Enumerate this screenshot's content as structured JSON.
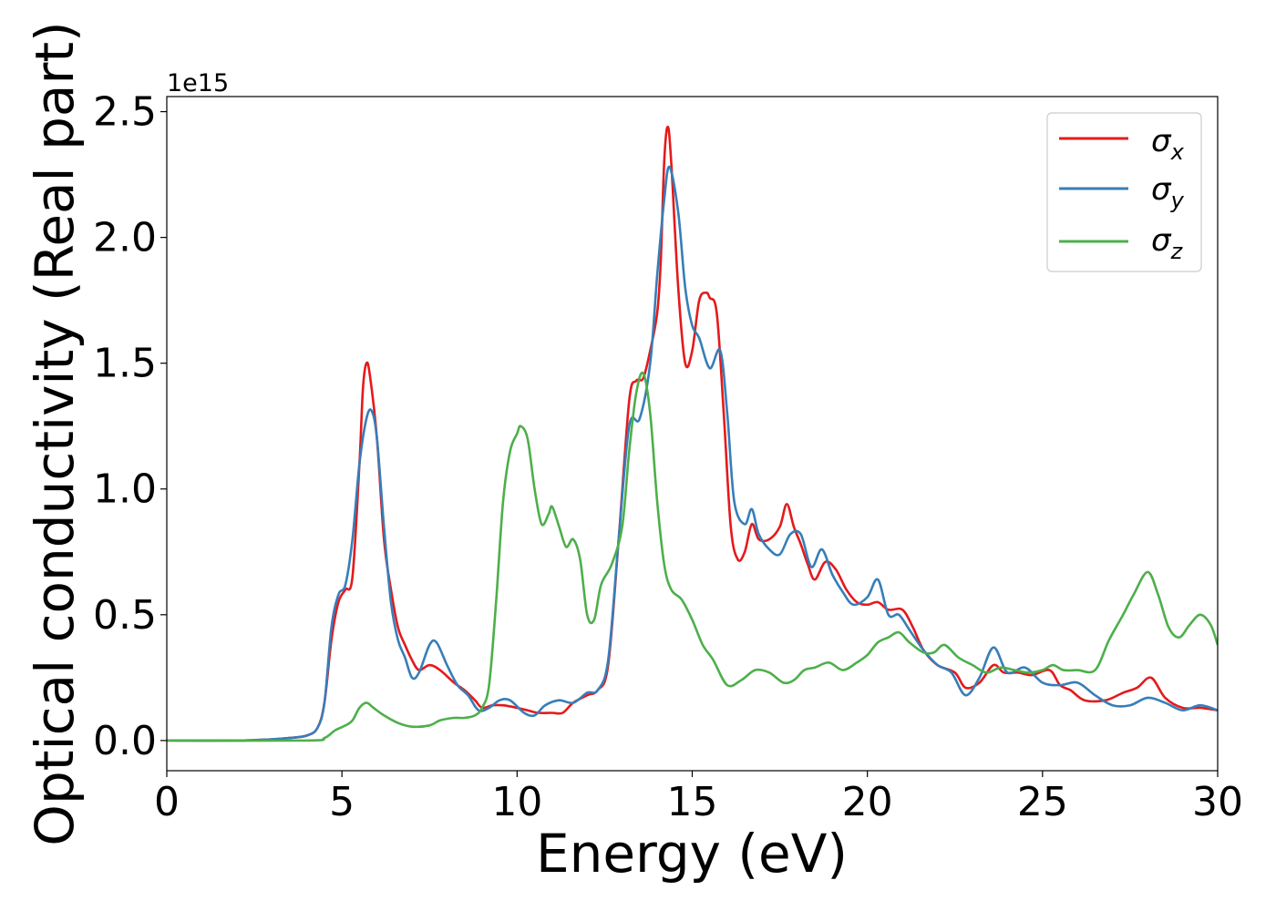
{
  "chart_data": {
    "type": "line",
    "xlabel": "Energy (eV)",
    "ylabel": "Optical conductivity (Real part)",
    "y_offset_label": "1e15",
    "xlim": [
      0,
      30
    ],
    "ylim": [
      -0.12,
      2.56
    ],
    "x_ticks": [
      0,
      5,
      10,
      15,
      20,
      25,
      30
    ],
    "x_tick_labels": [
      "0",
      "5",
      "10",
      "15",
      "20",
      "25",
      "30"
    ],
    "y_ticks": [
      0.0,
      0.5,
      1.0,
      1.5,
      2.0,
      2.5
    ],
    "y_tick_labels": [
      "0.0",
      "0.5",
      "1.0",
      "1.5",
      "2.0",
      "2.5"
    ],
    "grid": false,
    "legend_position": "top-right",
    "series": [
      {
        "name": "σx",
        "legend_base": "σ",
        "legend_sub": "x",
        "color": "#e41a1c",
        "points": [
          [
            0,
            0
          ],
          [
            2,
            0
          ],
          [
            3,
            0.005
          ],
          [
            3.5,
            0.01
          ],
          [
            4,
            0.02
          ],
          [
            4.3,
            0.05
          ],
          [
            4.5,
            0.15
          ],
          [
            4.7,
            0.4
          ],
          [
            4.9,
            0.55
          ],
          [
            5.1,
            0.6
          ],
          [
            5.3,
            0.65
          ],
          [
            5.5,
            1.1
          ],
          [
            5.6,
            1.4
          ],
          [
            5.7,
            1.5
          ],
          [
            5.8,
            1.45
          ],
          [
            6,
            1.2
          ],
          [
            6.2,
            0.8
          ],
          [
            6.4,
            0.6
          ],
          [
            6.6,
            0.45
          ],
          [
            6.8,
            0.38
          ],
          [
            7,
            0.32
          ],
          [
            7.2,
            0.28
          ],
          [
            7.5,
            0.3
          ],
          [
            7.8,
            0.28
          ],
          [
            8.2,
            0.23
          ],
          [
            8.5,
            0.2
          ],
          [
            8.8,
            0.16
          ],
          [
            9,
            0.13
          ],
          [
            9.3,
            0.14
          ],
          [
            9.6,
            0.14
          ],
          [
            10,
            0.13
          ],
          [
            10.3,
            0.12
          ],
          [
            10.6,
            0.11
          ],
          [
            11,
            0.11
          ],
          [
            11.3,
            0.11
          ],
          [
            11.6,
            0.15
          ],
          [
            12,
            0.18
          ],
          [
            12.3,
            0.2
          ],
          [
            12.6,
            0.3
          ],
          [
            12.9,
            0.8
          ],
          [
            13.2,
            1.35
          ],
          [
            13.4,
            1.43
          ],
          [
            13.6,
            1.44
          ],
          [
            13.8,
            1.55
          ],
          [
            14,
            1.7
          ],
          [
            14.1,
            1.9
          ],
          [
            14.2,
            2.3
          ],
          [
            14.3,
            2.44
          ],
          [
            14.4,
            2.3
          ],
          [
            14.6,
            1.8
          ],
          [
            14.8,
            1.5
          ],
          [
            15,
            1.55
          ],
          [
            15.2,
            1.75
          ],
          [
            15.4,
            1.78
          ],
          [
            15.5,
            1.76
          ],
          [
            15.7,
            1.7
          ],
          [
            15.9,
            1.3
          ],
          [
            16.1,
            0.85
          ],
          [
            16.3,
            0.72
          ],
          [
            16.5,
            0.75
          ],
          [
            16.7,
            0.86
          ],
          [
            16.9,
            0.8
          ],
          [
            17.2,
            0.8
          ],
          [
            17.5,
            0.85
          ],
          [
            17.7,
            0.94
          ],
          [
            17.9,
            0.85
          ],
          [
            18.1,
            0.78
          ],
          [
            18.3,
            0.7
          ],
          [
            18.5,
            0.64
          ],
          [
            18.8,
            0.71
          ],
          [
            19.1,
            0.68
          ],
          [
            19.4,
            0.6
          ],
          [
            19.7,
            0.55
          ],
          [
            20,
            0.54
          ],
          [
            20.3,
            0.55
          ],
          [
            20.6,
            0.52
          ],
          [
            21,
            0.52
          ],
          [
            21.3,
            0.45
          ],
          [
            21.6,
            0.36
          ],
          [
            22,
            0.3
          ],
          [
            22.5,
            0.27
          ],
          [
            22.8,
            0.21
          ],
          [
            23.2,
            0.23
          ],
          [
            23.6,
            0.3
          ],
          [
            23.9,
            0.27
          ],
          [
            24.3,
            0.27
          ],
          [
            24.7,
            0.26
          ],
          [
            25.2,
            0.28
          ],
          [
            25.5,
            0.22
          ],
          [
            25.8,
            0.2
          ],
          [
            26.2,
            0.16
          ],
          [
            26.8,
            0.16
          ],
          [
            27.3,
            0.19
          ],
          [
            27.7,
            0.21
          ],
          [
            28.1,
            0.25
          ],
          [
            28.5,
            0.17
          ],
          [
            29,
            0.13
          ],
          [
            29.5,
            0.13
          ],
          [
            30,
            0.12
          ]
        ]
      },
      {
        "name": "σy",
        "legend_base": "σ",
        "legend_sub": "y",
        "color": "#377eb8",
        "points": [
          [
            0,
            0
          ],
          [
            2,
            0
          ],
          [
            3,
            0.005
          ],
          [
            3.5,
            0.01
          ],
          [
            4,
            0.02
          ],
          [
            4.3,
            0.05
          ],
          [
            4.5,
            0.15
          ],
          [
            4.7,
            0.45
          ],
          [
            4.9,
            0.58
          ],
          [
            5.1,
            0.62
          ],
          [
            5.3,
            0.8
          ],
          [
            5.5,
            1.1
          ],
          [
            5.7,
            1.28
          ],
          [
            5.85,
            1.31
          ],
          [
            6,
            1.2
          ],
          [
            6.2,
            0.85
          ],
          [
            6.4,
            0.55
          ],
          [
            6.6,
            0.4
          ],
          [
            6.8,
            0.33
          ],
          [
            7,
            0.25
          ],
          [
            7.2,
            0.27
          ],
          [
            7.5,
            0.38
          ],
          [
            7.7,
            0.39
          ],
          [
            8,
            0.3
          ],
          [
            8.3,
            0.22
          ],
          [
            8.6,
            0.18
          ],
          [
            8.9,
            0.12
          ],
          [
            9.2,
            0.13
          ],
          [
            9.5,
            0.16
          ],
          [
            9.8,
            0.16
          ],
          [
            10.2,
            0.11
          ],
          [
            10.5,
            0.1
          ],
          [
            10.8,
            0.14
          ],
          [
            11.2,
            0.16
          ],
          [
            11.6,
            0.15
          ],
          [
            12,
            0.19
          ],
          [
            12.3,
            0.2
          ],
          [
            12.6,
            0.32
          ],
          [
            12.9,
            0.8
          ],
          [
            13.2,
            1.25
          ],
          [
            13.5,
            1.28
          ],
          [
            13.8,
            1.5
          ],
          [
            14,
            1.85
          ],
          [
            14.2,
            2.15
          ],
          [
            14.35,
            2.28
          ],
          [
            14.6,
            2.1
          ],
          [
            14.8,
            1.8
          ],
          [
            15,
            1.65
          ],
          [
            15.2,
            1.6
          ],
          [
            15.5,
            1.48
          ],
          [
            15.8,
            1.55
          ],
          [
            16,
            1.3
          ],
          [
            16.2,
            0.95
          ],
          [
            16.5,
            0.86
          ],
          [
            16.7,
            0.92
          ],
          [
            16.9,
            0.82
          ],
          [
            17.2,
            0.76
          ],
          [
            17.5,
            0.74
          ],
          [
            17.8,
            0.82
          ],
          [
            18.1,
            0.82
          ],
          [
            18.4,
            0.69
          ],
          [
            18.7,
            0.76
          ],
          [
            19,
            0.66
          ],
          [
            19.3,
            0.59
          ],
          [
            19.6,
            0.54
          ],
          [
            20,
            0.57
          ],
          [
            20.3,
            0.64
          ],
          [
            20.6,
            0.5
          ],
          [
            20.9,
            0.5
          ],
          [
            21.2,
            0.44
          ],
          [
            21.6,
            0.36
          ],
          [
            22,
            0.3
          ],
          [
            22.4,
            0.27
          ],
          [
            22.8,
            0.18
          ],
          [
            23.2,
            0.25
          ],
          [
            23.6,
            0.37
          ],
          [
            24,
            0.27
          ],
          [
            24.5,
            0.29
          ],
          [
            25,
            0.23
          ],
          [
            25.5,
            0.22
          ],
          [
            26,
            0.23
          ],
          [
            26.5,
            0.18
          ],
          [
            27,
            0.14
          ],
          [
            27.5,
            0.14
          ],
          [
            28,
            0.17
          ],
          [
            28.5,
            0.15
          ],
          [
            29,
            0.12
          ],
          [
            29.5,
            0.14
          ],
          [
            30,
            0.12
          ]
        ]
      },
      {
        "name": "σz",
        "legend_base": "σ",
        "legend_sub": "z",
        "color": "#4daf4a",
        "points": [
          [
            0,
            0
          ],
          [
            4,
            0
          ],
          [
            4.5,
            0.01
          ],
          [
            4.8,
            0.04
          ],
          [
            5.1,
            0.06
          ],
          [
            5.3,
            0.08
          ],
          [
            5.5,
            0.13
          ],
          [
            5.7,
            0.15
          ],
          [
            5.9,
            0.13
          ],
          [
            6.2,
            0.1
          ],
          [
            6.6,
            0.07
          ],
          [
            7,
            0.055
          ],
          [
            7.5,
            0.06
          ],
          [
            7.8,
            0.08
          ],
          [
            8.2,
            0.09
          ],
          [
            8.5,
            0.09
          ],
          [
            8.8,
            0.1
          ],
          [
            9,
            0.13
          ],
          [
            9.2,
            0.22
          ],
          [
            9.4,
            0.55
          ],
          [
            9.6,
            0.95
          ],
          [
            9.8,
            1.15
          ],
          [
            10,
            1.22
          ],
          [
            10.1,
            1.25
          ],
          [
            10.3,
            1.2
          ],
          [
            10.5,
            1.0
          ],
          [
            10.7,
            0.86
          ],
          [
            10.9,
            0.9
          ],
          [
            11,
            0.93
          ],
          [
            11.2,
            0.85
          ],
          [
            11.4,
            0.77
          ],
          [
            11.6,
            0.8
          ],
          [
            11.8,
            0.72
          ],
          [
            12,
            0.5
          ],
          [
            12.2,
            0.48
          ],
          [
            12.4,
            0.62
          ],
          [
            12.7,
            0.7
          ],
          [
            13,
            0.85
          ],
          [
            13.2,
            1.15
          ],
          [
            13.4,
            1.38
          ],
          [
            13.6,
            1.46
          ],
          [
            13.8,
            1.3
          ],
          [
            14,
            0.95
          ],
          [
            14.2,
            0.7
          ],
          [
            14.4,
            0.6
          ],
          [
            14.7,
            0.56
          ],
          [
            15,
            0.48
          ],
          [
            15.3,
            0.38
          ],
          [
            15.6,
            0.32
          ],
          [
            16,
            0.22
          ],
          [
            16.4,
            0.24
          ],
          [
            16.8,
            0.28
          ],
          [
            17.2,
            0.27
          ],
          [
            17.6,
            0.23
          ],
          [
            17.9,
            0.24
          ],
          [
            18.2,
            0.28
          ],
          [
            18.5,
            0.29
          ],
          [
            18.9,
            0.31
          ],
          [
            19.3,
            0.28
          ],
          [
            19.7,
            0.31
          ],
          [
            20,
            0.34
          ],
          [
            20.3,
            0.39
          ],
          [
            20.6,
            0.41
          ],
          [
            20.9,
            0.43
          ],
          [
            21.2,
            0.39
          ],
          [
            21.6,
            0.35
          ],
          [
            21.9,
            0.35
          ],
          [
            22.2,
            0.38
          ],
          [
            22.6,
            0.33
          ],
          [
            23,
            0.3
          ],
          [
            23.4,
            0.27
          ],
          [
            23.8,
            0.29
          ],
          [
            24.2,
            0.28
          ],
          [
            24.6,
            0.27
          ],
          [
            25,
            0.28
          ],
          [
            25.3,
            0.3
          ],
          [
            25.6,
            0.28
          ],
          [
            26,
            0.28
          ],
          [
            26.5,
            0.28
          ],
          [
            26.9,
            0.4
          ],
          [
            27.3,
            0.5
          ],
          [
            27.6,
            0.58
          ],
          [
            28,
            0.67
          ],
          [
            28.3,
            0.58
          ],
          [
            28.6,
            0.45
          ],
          [
            28.9,
            0.41
          ],
          [
            29.2,
            0.46
          ],
          [
            29.5,
            0.5
          ],
          [
            29.8,
            0.46
          ],
          [
            30,
            0.38
          ]
        ]
      }
    ]
  }
}
